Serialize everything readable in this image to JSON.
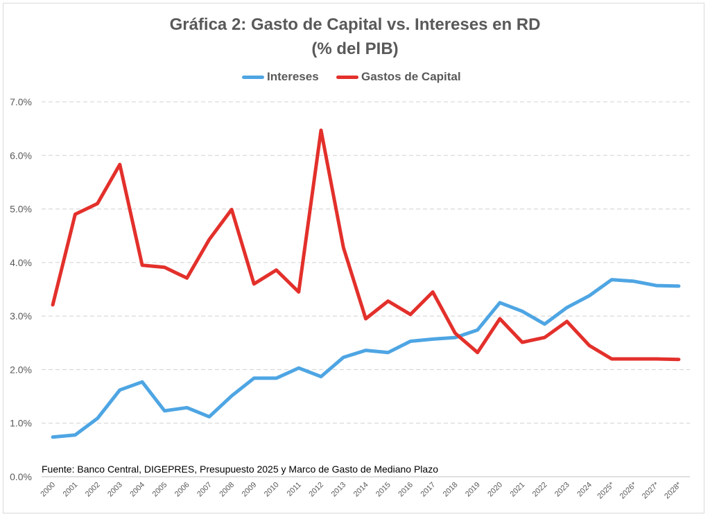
{
  "chart_data": {
    "type": "line",
    "title": "Gráfica 2: Gasto de Capital vs. Intereses en RD",
    "subtitle": "(% del PIB)",
    "source": "Fuente: Banco Central, DIGEPRES, Presupuesto 2025 y Marco de Gasto de Mediano Plazo",
    "legend_position": "top",
    "grid": true,
    "ylim": [
      0,
      7
    ],
    "yticks": [
      "0.0%",
      "1.0%",
      "2.0%",
      "3.0%",
      "4.0%",
      "5.0%",
      "6.0%",
      "7.0%"
    ],
    "categories": [
      "2000",
      "2001",
      "2002",
      "2003",
      "2004",
      "2005",
      "2006",
      "2007",
      "2008",
      "2009",
      "2010",
      "2011",
      "2012",
      "2013",
      "2014",
      "2015",
      "2016",
      "2017",
      "2018",
      "2019",
      "2020",
      "2021",
      "2022",
      "2023",
      "2024",
      "2025*",
      "2026*",
      "2027*",
      "2028*"
    ],
    "series": [
      {
        "name": "Intereses",
        "color": "#4ea5e3",
        "values": [
          0.74,
          0.78,
          1.09,
          1.62,
          1.77,
          1.23,
          1.29,
          1.12,
          1.51,
          1.84,
          1.84,
          2.03,
          1.87,
          2.23,
          2.36,
          2.32,
          2.53,
          2.57,
          2.6,
          2.74,
          3.25,
          3.09,
          2.85,
          3.16,
          3.38,
          3.68,
          3.65,
          3.57,
          3.56
        ]
      },
      {
        "name": "Gastos de Capital",
        "color": "#e3302b",
        "values": [
          3.21,
          4.9,
          5.1,
          5.83,
          3.95,
          3.91,
          3.71,
          4.43,
          4.99,
          3.6,
          3.86,
          3.45,
          6.47,
          4.28,
          2.95,
          3.28,
          3.03,
          3.45,
          2.68,
          2.32,
          2.95,
          2.51,
          2.6,
          2.9,
          2.45,
          2.2,
          2.2,
          2.2,
          2.19
        ]
      }
    ]
  }
}
